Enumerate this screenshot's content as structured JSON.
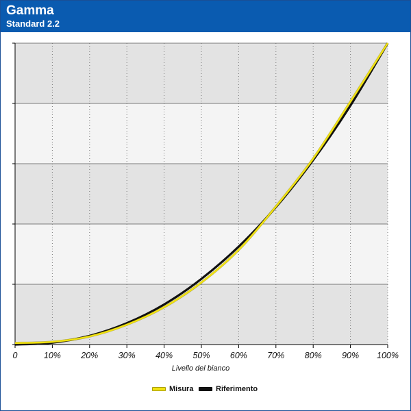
{
  "header": {
    "title": "Gamma",
    "subtitle": "Standard 2.2"
  },
  "colors": {
    "header_bg": "#0a5bb0",
    "measured": "#f2e311",
    "reference": "#111111",
    "band_dark": "#e3e3e3",
    "band_light": "#f4f4f4"
  },
  "chart_data": {
    "type": "line",
    "xlabel": "Livello del bianco",
    "x_ticks": [
      "0",
      "10%",
      "20%",
      "30%",
      "40%",
      "50%",
      "60%",
      "70%",
      "80%",
      "90%",
      "100%"
    ],
    "xlim": [
      0,
      100
    ],
    "ylim": [
      0,
      1
    ],
    "y_bands": 5,
    "grid": "dotted vertical, horizontal bands",
    "legend_position": "bottom",
    "series": [
      {
        "name": "Misura",
        "color": "#f2e311",
        "x": [
          0,
          10,
          20,
          30,
          40,
          50,
          60,
          70,
          80,
          90,
          100
        ],
        "y": [
          0.005,
          0.009,
          0.027,
          0.066,
          0.124,
          0.206,
          0.314,
          0.458,
          0.617,
          0.806,
          1.0
        ]
      },
      {
        "name": "Riferimento",
        "color": "#111111",
        "x": [
          0,
          10,
          20,
          30,
          40,
          50,
          60,
          70,
          80,
          90,
          100
        ],
        "y": [
          0,
          0.0063,
          0.029,
          0.071,
          0.133,
          0.218,
          0.325,
          0.456,
          0.612,
          0.793,
          1.0
        ]
      }
    ]
  }
}
